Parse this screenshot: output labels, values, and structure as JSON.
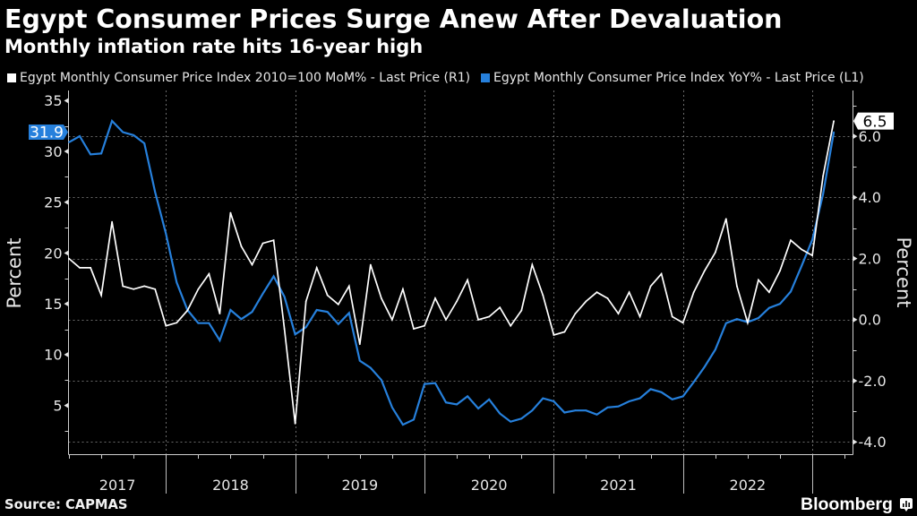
{
  "header": {
    "title": "Egypt Consumer Prices Surge Anew After Devaluation",
    "subtitle": "Monthly inflation rate hits 16-year high"
  },
  "legend": {
    "position": "top-left",
    "items": [
      {
        "label": "Egypt Monthly Consumer Price Index 2010=100 MoM% - Last Price (R1)",
        "color": "#ffffff"
      },
      {
        "label": "Egypt Monthly Consumer Price Index YoY% - Last Price (L1)",
        "color": "#2680dc"
      }
    ]
  },
  "footer": {
    "source": "Source: CAPMAS",
    "brand": "Bloomberg",
    "brand_icon": "bloomberg-chart-icon"
  },
  "colors": {
    "background": "#000000",
    "text": "#ffffff",
    "axis": "#cfcfcf",
    "grid": "#6b6b6b",
    "mom_series": "#ffffff",
    "yoy_series": "#2680dc"
  },
  "chart_data": {
    "type": "line",
    "title": "Egypt Consumer Prices Surge Anew After Devaluation",
    "subtitle": "Monthly inflation rate hits 16-year high",
    "x": [
      "2017-03",
      "2017-04",
      "2017-05",
      "2017-06",
      "2017-07",
      "2017-08",
      "2017-09",
      "2017-10",
      "2017-11",
      "2017-12",
      "2018-01",
      "2018-02",
      "2018-03",
      "2018-04",
      "2018-05",
      "2018-06",
      "2018-07",
      "2018-08",
      "2018-09",
      "2018-10",
      "2018-11",
      "2018-12",
      "2019-01",
      "2019-02",
      "2019-03",
      "2019-04",
      "2019-05",
      "2019-06",
      "2019-07",
      "2019-08",
      "2019-09",
      "2019-10",
      "2019-11",
      "2019-12",
      "2020-01",
      "2020-02",
      "2020-03",
      "2020-04",
      "2020-05",
      "2020-06",
      "2020-07",
      "2020-08",
      "2020-09",
      "2020-10",
      "2020-11",
      "2020-12",
      "2021-01",
      "2021-02",
      "2021-03",
      "2021-04",
      "2021-05",
      "2021-06",
      "2021-07",
      "2021-08",
      "2021-09",
      "2021-10",
      "2021-11",
      "2021-12",
      "2022-01",
      "2022-02",
      "2022-03",
      "2022-04",
      "2022-05",
      "2022-06",
      "2022-07",
      "2022-08",
      "2022-09",
      "2022-10",
      "2022-11",
      "2022-12",
      "2023-01",
      "2023-02"
    ],
    "x_tick_labels": [
      "2017",
      "2018",
      "2019",
      "2020",
      "2021",
      "2022"
    ],
    "series": [
      {
        "name": "Egypt Monthly Consumer Price Index 2010=100 MoM% - Last Price (R1)",
        "axis": "right",
        "color": "#ffffff",
        "last_value_label": "6.5",
        "values": [
          2.0,
          1.7,
          1.7,
          0.8,
          3.2,
          1.1,
          1.0,
          1.1,
          1.0,
          -0.2,
          -0.1,
          0.3,
          1.0,
          1.5,
          0.2,
          3.5,
          2.4,
          1.8,
          2.5,
          2.6,
          -0.3,
          -3.4,
          0.6,
          1.7,
          0.8,
          0.5,
          1.1,
          -0.8,
          1.8,
          0.7,
          0.0,
          1.0,
          -0.3,
          -0.2,
          0.7,
          0.0,
          0.6,
          1.3,
          0.0,
          0.1,
          0.4,
          -0.2,
          0.3,
          1.8,
          0.8,
          -0.5,
          -0.4,
          0.2,
          0.6,
          0.9,
          0.7,
          0.2,
          0.9,
          0.1,
          1.1,
          1.5,
          0.1,
          -0.1,
          0.9,
          1.6,
          2.2,
          3.3,
          1.1,
          -0.1,
          1.3,
          0.9,
          1.6,
          2.6,
          2.3,
          2.1,
          4.7,
          6.5
        ]
      },
      {
        "name": "Egypt Monthly Consumer Price Index YoY% - Last Price (L1)",
        "axis": "left",
        "color": "#2680dc",
        "last_value_label": "31.9",
        "values": [
          30.9,
          31.5,
          29.7,
          29.8,
          33.0,
          31.9,
          31.6,
          30.8,
          26.0,
          21.9,
          17.1,
          14.4,
          13.1,
          13.1,
          11.4,
          14.4,
          13.5,
          14.2,
          16.0,
          17.7,
          15.7,
          12.0,
          12.7,
          14.4,
          14.2,
          13.0,
          14.1,
          9.4,
          8.7,
          7.5,
          4.8,
          3.1,
          3.6,
          7.1,
          7.2,
          5.3,
          5.1,
          5.9,
          4.7,
          5.6,
          4.2,
          3.4,
          3.7,
          4.5,
          5.7,
          5.4,
          4.3,
          4.5,
          4.5,
          4.1,
          4.8,
          4.9,
          5.4,
          5.7,
          6.6,
          6.3,
          5.6,
          5.9,
          7.3,
          8.8,
          10.5,
          13.1,
          13.5,
          13.2,
          13.6,
          14.6,
          15.0,
          16.2,
          18.7,
          21.3,
          25.8,
          31.9
        ]
      }
    ],
    "y_left": {
      "label": "Percent",
      "axis_id": "L1",
      "range": [
        0.2,
        36.0
      ],
      "ticks": [
        5,
        10,
        15,
        20,
        25,
        30,
        35
      ],
      "tick_labels": [
        "5",
        "10",
        "15",
        "20",
        "25",
        "30",
        "35"
      ],
      "minor_ticks": [
        2.5,
        7.5,
        12.5,
        17.5,
        22.5,
        27.5,
        32.5
      ]
    },
    "y_right": {
      "label": "Percent",
      "axis_id": "R1",
      "range": [
        -4.4,
        7.5
      ],
      "ticks": [
        -4,
        -2,
        0,
        2,
        4,
        6
      ],
      "tick_labels": [
        "-4.0",
        "-2.0",
        "0.0",
        "2.0",
        "4.0",
        "6.0"
      ],
      "minor_ticks": [
        -3,
        -1,
        1,
        3,
        5,
        7
      ]
    },
    "xlabel": "",
    "grid": true,
    "legend_position": "top-left"
  }
}
